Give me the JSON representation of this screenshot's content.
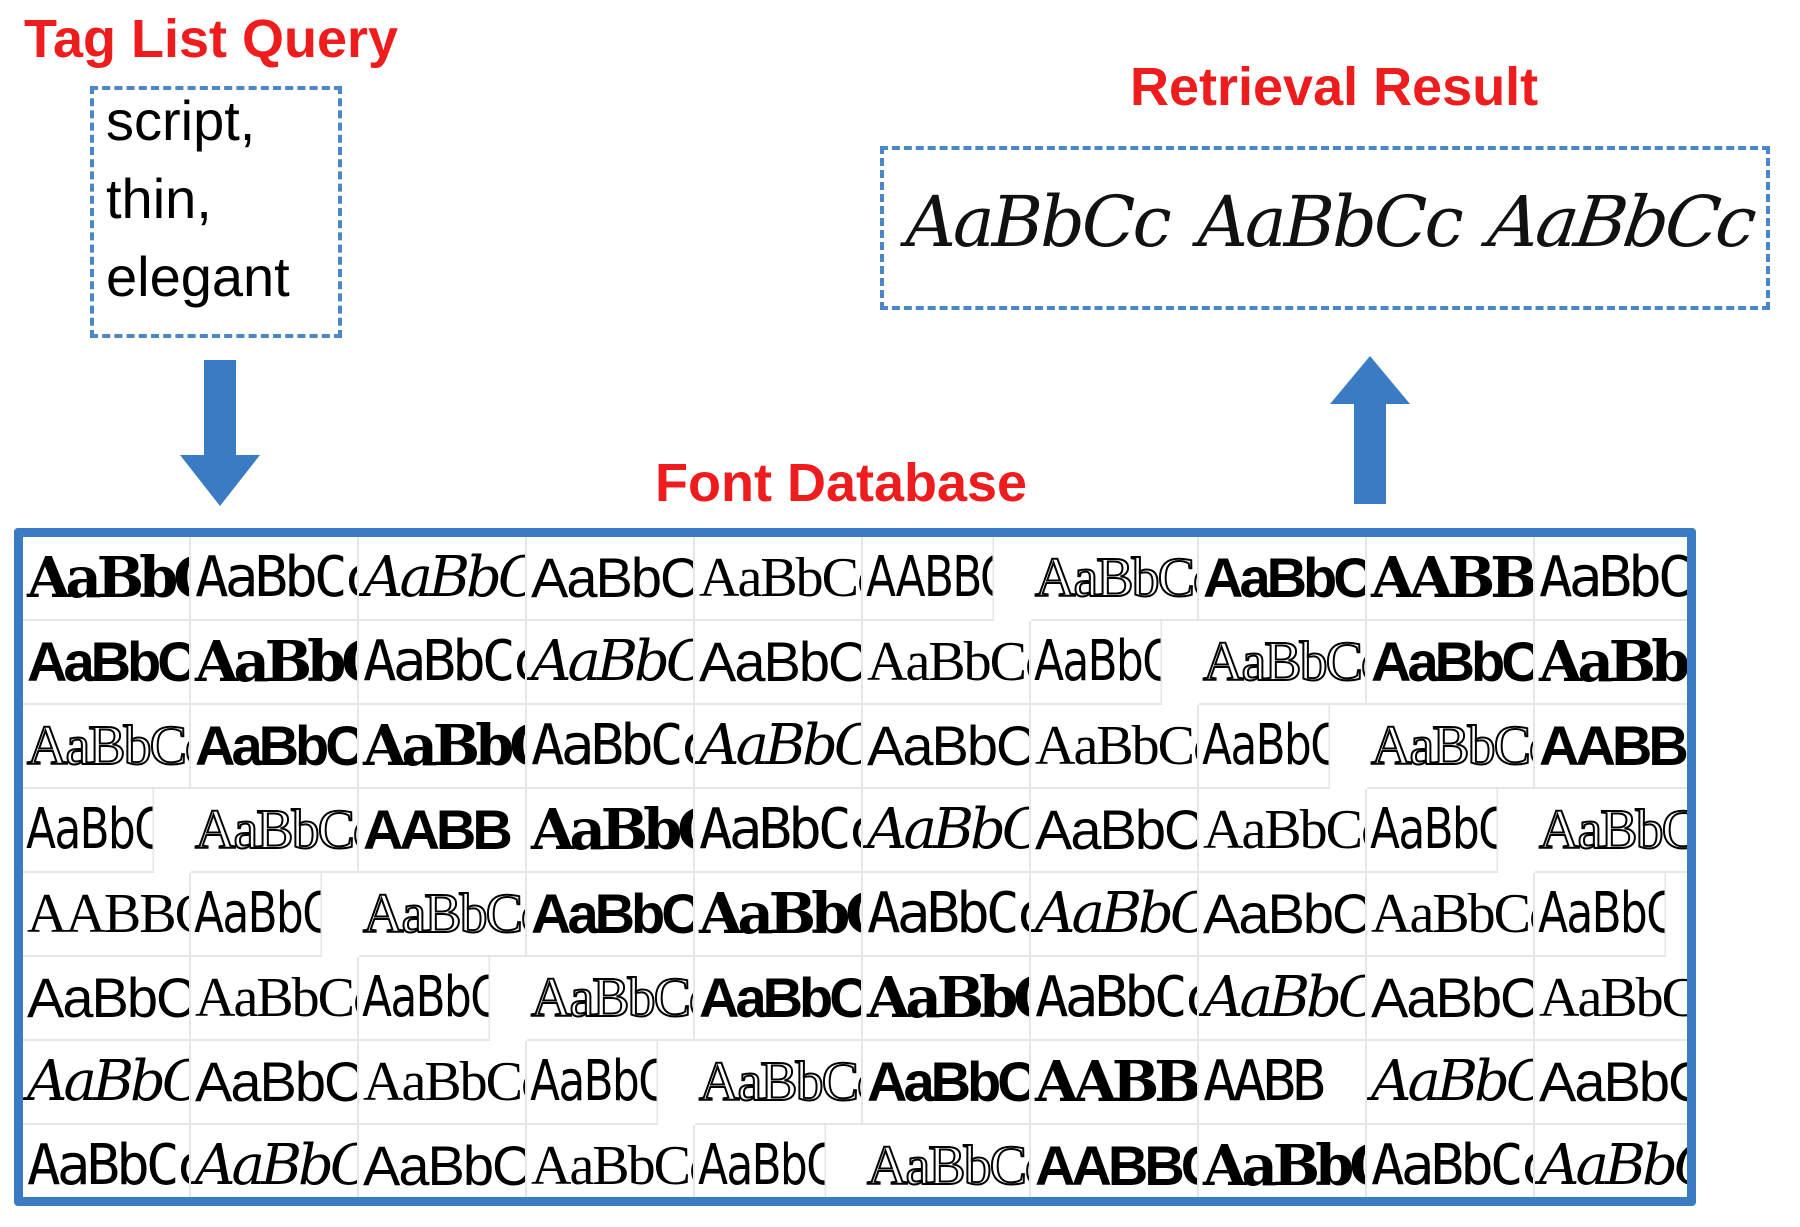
{
  "colors": {
    "heading": "#ee1c1c",
    "box_border": "#4a86c8",
    "frame": "#3a7cc4",
    "arrow": "#3a7cc4"
  },
  "query": {
    "title": "Tag List Query",
    "tags": [
      "script,",
      "thin,",
      "elegant"
    ]
  },
  "result": {
    "title": "Retrieval Result",
    "samples": [
      "AaBbCc",
      "AaBbCc",
      "AaBbCc"
    ]
  },
  "database": {
    "title": "Font Database",
    "rows": [
      [
        "AaBbCc",
        "AaBbCc",
        "AaBbCc",
        "AaBbCc",
        "AaBbCc",
        "AABBCC",
        "AaBbCc",
        "AaBbCc",
        "AABBCC",
        "AaBbCc"
      ],
      [
        "AaBbCc",
        "AaBbCc",
        "AaBbCc",
        "AaBbCc",
        "AaBbCc",
        "AaBbCc",
        "AaBbCc",
        "AaBbCc",
        "AaBbCc",
        "AaBbCc"
      ],
      [
        "AaBbCc",
        "AaBbCc",
        "AaBbCc",
        "AaBbCc",
        "AaBbCc",
        "AaBbCc",
        "AaBbCc",
        "AaBbCc",
        "AaBbCc",
        "AABBCC"
      ],
      [
        "AaBbCc",
        "AaBbCc",
        "AABB",
        "AaBbCc",
        "AaBbCc",
        "AaBbC",
        "AaBbCc",
        "AaBbCc",
        "AaBbCc",
        "AaBbCc"
      ],
      [
        "AABBCC",
        "AaBbCc",
        "AaBbCc",
        "AaBbCc",
        "AaBbCc",
        "AaBbCc",
        "AaBbCc",
        "AaBbCc",
        "AaBbCc",
        "AaBbCc"
      ],
      [
        "AaBbCc",
        "AaBbCc",
        "AaBbCc",
        "AaBbCc",
        "AaBbCc",
        "AaBbC",
        "AaBbCc",
        "AaBbCc",
        "AaBbCc",
        "AaBbCc"
      ],
      [
        "AaBbCc",
        "AaBbCc",
        "AaBbCc",
        "AaBbC",
        "AaBbCc",
        "AaBbCc",
        "AABBCC",
        "AABB",
        "AaBbCc",
        "AaBbC"
      ],
      [
        "AaBbCc",
        "AaBbCc",
        "AaBbCc",
        "AaBbCc",
        "AaBbC",
        "AaBbCc",
        "AABBCC",
        "AaBbCc",
        "AaBbCc",
        "AaBbCc"
      ]
    ]
  }
}
